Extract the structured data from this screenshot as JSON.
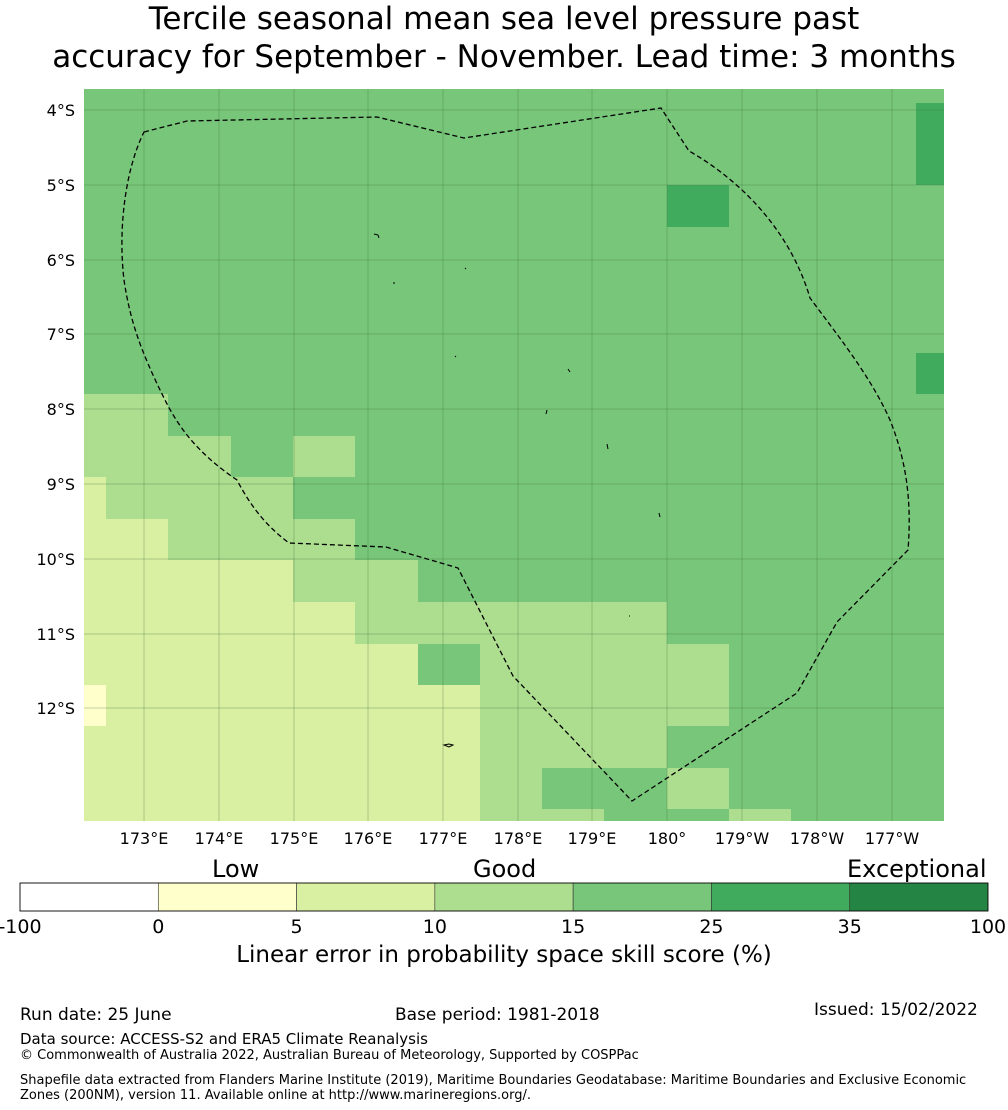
{
  "title": {
    "line1": "Tercile seasonal mean sea level pressure past",
    "line2": "accuracy for September - November. Lead time: 3 months"
  },
  "map": {
    "lat_labels": [
      "4°S",
      "5°S",
      "6°S",
      "7°S",
      "8°S",
      "9°S",
      "10°S",
      "11°S",
      "12°S"
    ],
    "lon_labels": [
      "173°E",
      "174°E",
      "175°E",
      "176°E",
      "177°E",
      "178°E",
      "179°E",
      "180°",
      "179°W",
      "178°W",
      "177°W"
    ],
    "colors": {
      "c5_10": "#d9efa1",
      "c0_5": "#ffffcc",
      "c10_15": "#addd8e",
      "c15_25": "#78c679",
      "c25_35": "#41ab5d",
      "c35_100": "#238443",
      "boundary": "#000000"
    }
  },
  "colorbar": {
    "categories": [
      "Low",
      "Good",
      "Exceptional"
    ],
    "ticks": [
      "-100",
      "0",
      "5",
      "10",
      "15",
      "25",
      "35",
      "100"
    ],
    "colors": [
      "#ffffff",
      "#ffffcc",
      "#d9efa1",
      "#addd8e",
      "#78c679",
      "#41ab5d",
      "#238443"
    ],
    "label": "Linear error in probability space skill score (%)"
  },
  "footer": {
    "run_date": "Run date: 25 June",
    "base_period": "Base period: 1981-2018",
    "issued": "Issued: 15/02/2022",
    "data_source": "Data source: ACCESS-S2 and ERA5 Climate Reanalysis",
    "copyright": "© Commonwealth of Australia 2022, Australian Bureau of Meteorology, Supported by COSPPac",
    "shapefile": "Shapefile data extracted from Flanders Marine Institute (2019), Maritime Boundaries Geodatabase: Maritime Boundaries and Exclusive Economic Zones (200NM), version 11. Available online at http://www.marineregions.org/."
  }
}
